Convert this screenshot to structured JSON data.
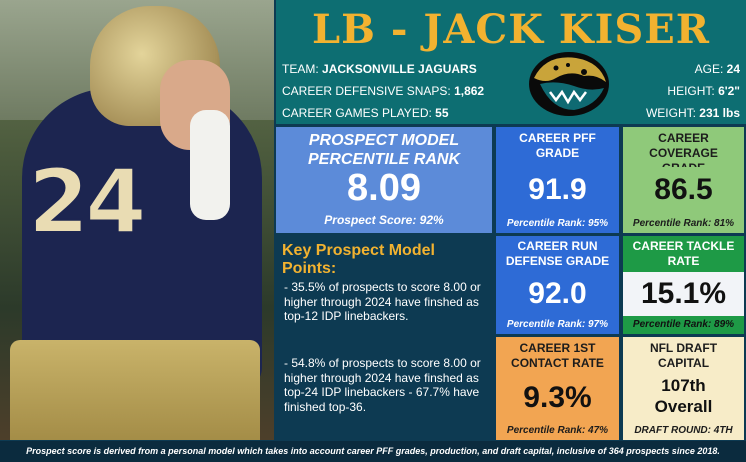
{
  "header": {
    "title": "LB - JACK KISER",
    "team_label": "TEAM:",
    "team_value": "JACKSONVILLE JAGUARS",
    "snaps_label": "CAREER DEFENSIVE SNAPS:",
    "snaps_value": "1,862",
    "games_label": "CAREER GAMES PLAYED:",
    "games_value": "55",
    "age_label": "AGE:",
    "age_value": "24",
    "height_label": "HEIGHT:",
    "height_value": "6'2\"",
    "weight_label": "WEIGHT:",
    "weight_value": "231 lbs"
  },
  "photo": {
    "jersey_number": "24"
  },
  "prospect": {
    "label_line1": "PROSPECT MODEL",
    "label_line2": "PERCENTILE RANK",
    "value": "8.09",
    "score": "Prospect Score: 92%"
  },
  "stats": {
    "pff": {
      "label_line1": "CAREER PFF",
      "label_line2": "GRADE",
      "value": "91.9",
      "rank": "Percentile Rank: 95%"
    },
    "coverage": {
      "label_line1": "CAREER COVERAGE",
      "label_line2": "GRADE",
      "value": "86.5",
      "rank": "Percentile Rank: 81%"
    },
    "run": {
      "label_line1": "CAREER RUN",
      "label_line2": "DEFENSE GRADE",
      "value": "92.0",
      "rank": "Percentile Rank: 97%"
    },
    "tackle": {
      "label_line1": "CAREER TACKLE",
      "label_line2": "RATE",
      "value": "15.1%",
      "rank": "Percentile Rank: 89%"
    },
    "contact": {
      "label_line1": "CAREER 1ST",
      "label_line2": "CONTACT RATE",
      "value": "9.3%",
      "rank": "Percentile Rank: 47%"
    },
    "draft": {
      "label_line1": "NFL DRAFT",
      "label_line2": "CAPITAL",
      "value_line1": "107th",
      "value_line2": "Overall",
      "round": "DRAFT ROUND: 4TH"
    }
  },
  "key_points": {
    "title": "Key Prospect Model Points:",
    "point1": "- 35.5% of prospects to score 8.00 or higher through 2024 have finshed as top-12 IDP linebackers.",
    "point2": "- 54.8% of prospects to score 8.00 or higher through 2024 have finshed as top-24 IDP linebackers - 67.7% have finished top-36."
  },
  "footer": {
    "text": "Prospect score is derived from a personal model which takes into account career PFF grades, production, and draft capital, inclusive of 364 prospects since 2018."
  },
  "colors": {
    "gold": "#f2b230",
    "teal_header": "#0d6e72",
    "navy": "#0d3a52",
    "blue": "#2e6bd6",
    "light_blue": "#5c8bd9",
    "light_green": "#8fc97a",
    "dark_green": "#1e9a46",
    "orange": "#f2a552",
    "cream": "#f7ecc8"
  }
}
